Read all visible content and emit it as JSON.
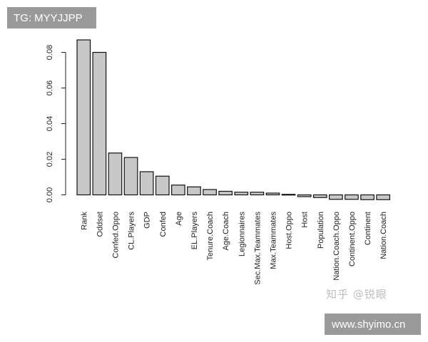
{
  "badges": {
    "top": "TG: MYYJJPP",
    "bottom": "www.shyimo.cn"
  },
  "watermark": "知乎 @锐眼",
  "chart_data": {
    "type": "bar",
    "title": "",
    "xlabel": "",
    "ylabel": "",
    "ylim": [
      -0.003,
      0.088
    ],
    "yticks": [
      0.0,
      0.02,
      0.04,
      0.06,
      0.08
    ],
    "ytick_labels": [
      "0.00",
      "0.02",
      "0.04",
      "0.06",
      "0.08"
    ],
    "grid": false,
    "bar_color": "#c8c8c8",
    "categories": [
      "Rank",
      "Oddset",
      "Confed.Oppo",
      "CL.Players",
      "GDP",
      "Confed",
      "Age",
      "EL.Players",
      "Tenure.Coach",
      "Age.Coach",
      "Legionnaires",
      "Sec.Max.Teammates",
      "Max.Teammates",
      "Host.Oppo",
      "Host",
      "Population",
      "Nation.Coach.Oppo",
      "Continent.Oppo",
      "Continent",
      "Nation.Coach"
    ],
    "values": [
      0.087,
      0.08,
      0.0235,
      0.021,
      0.013,
      0.0105,
      0.0055,
      0.0045,
      0.003,
      0.002,
      0.0015,
      0.0015,
      0.001,
      0.0003,
      -0.001,
      -0.0015,
      -0.0025,
      -0.0025,
      -0.0027,
      -0.0027
    ]
  }
}
